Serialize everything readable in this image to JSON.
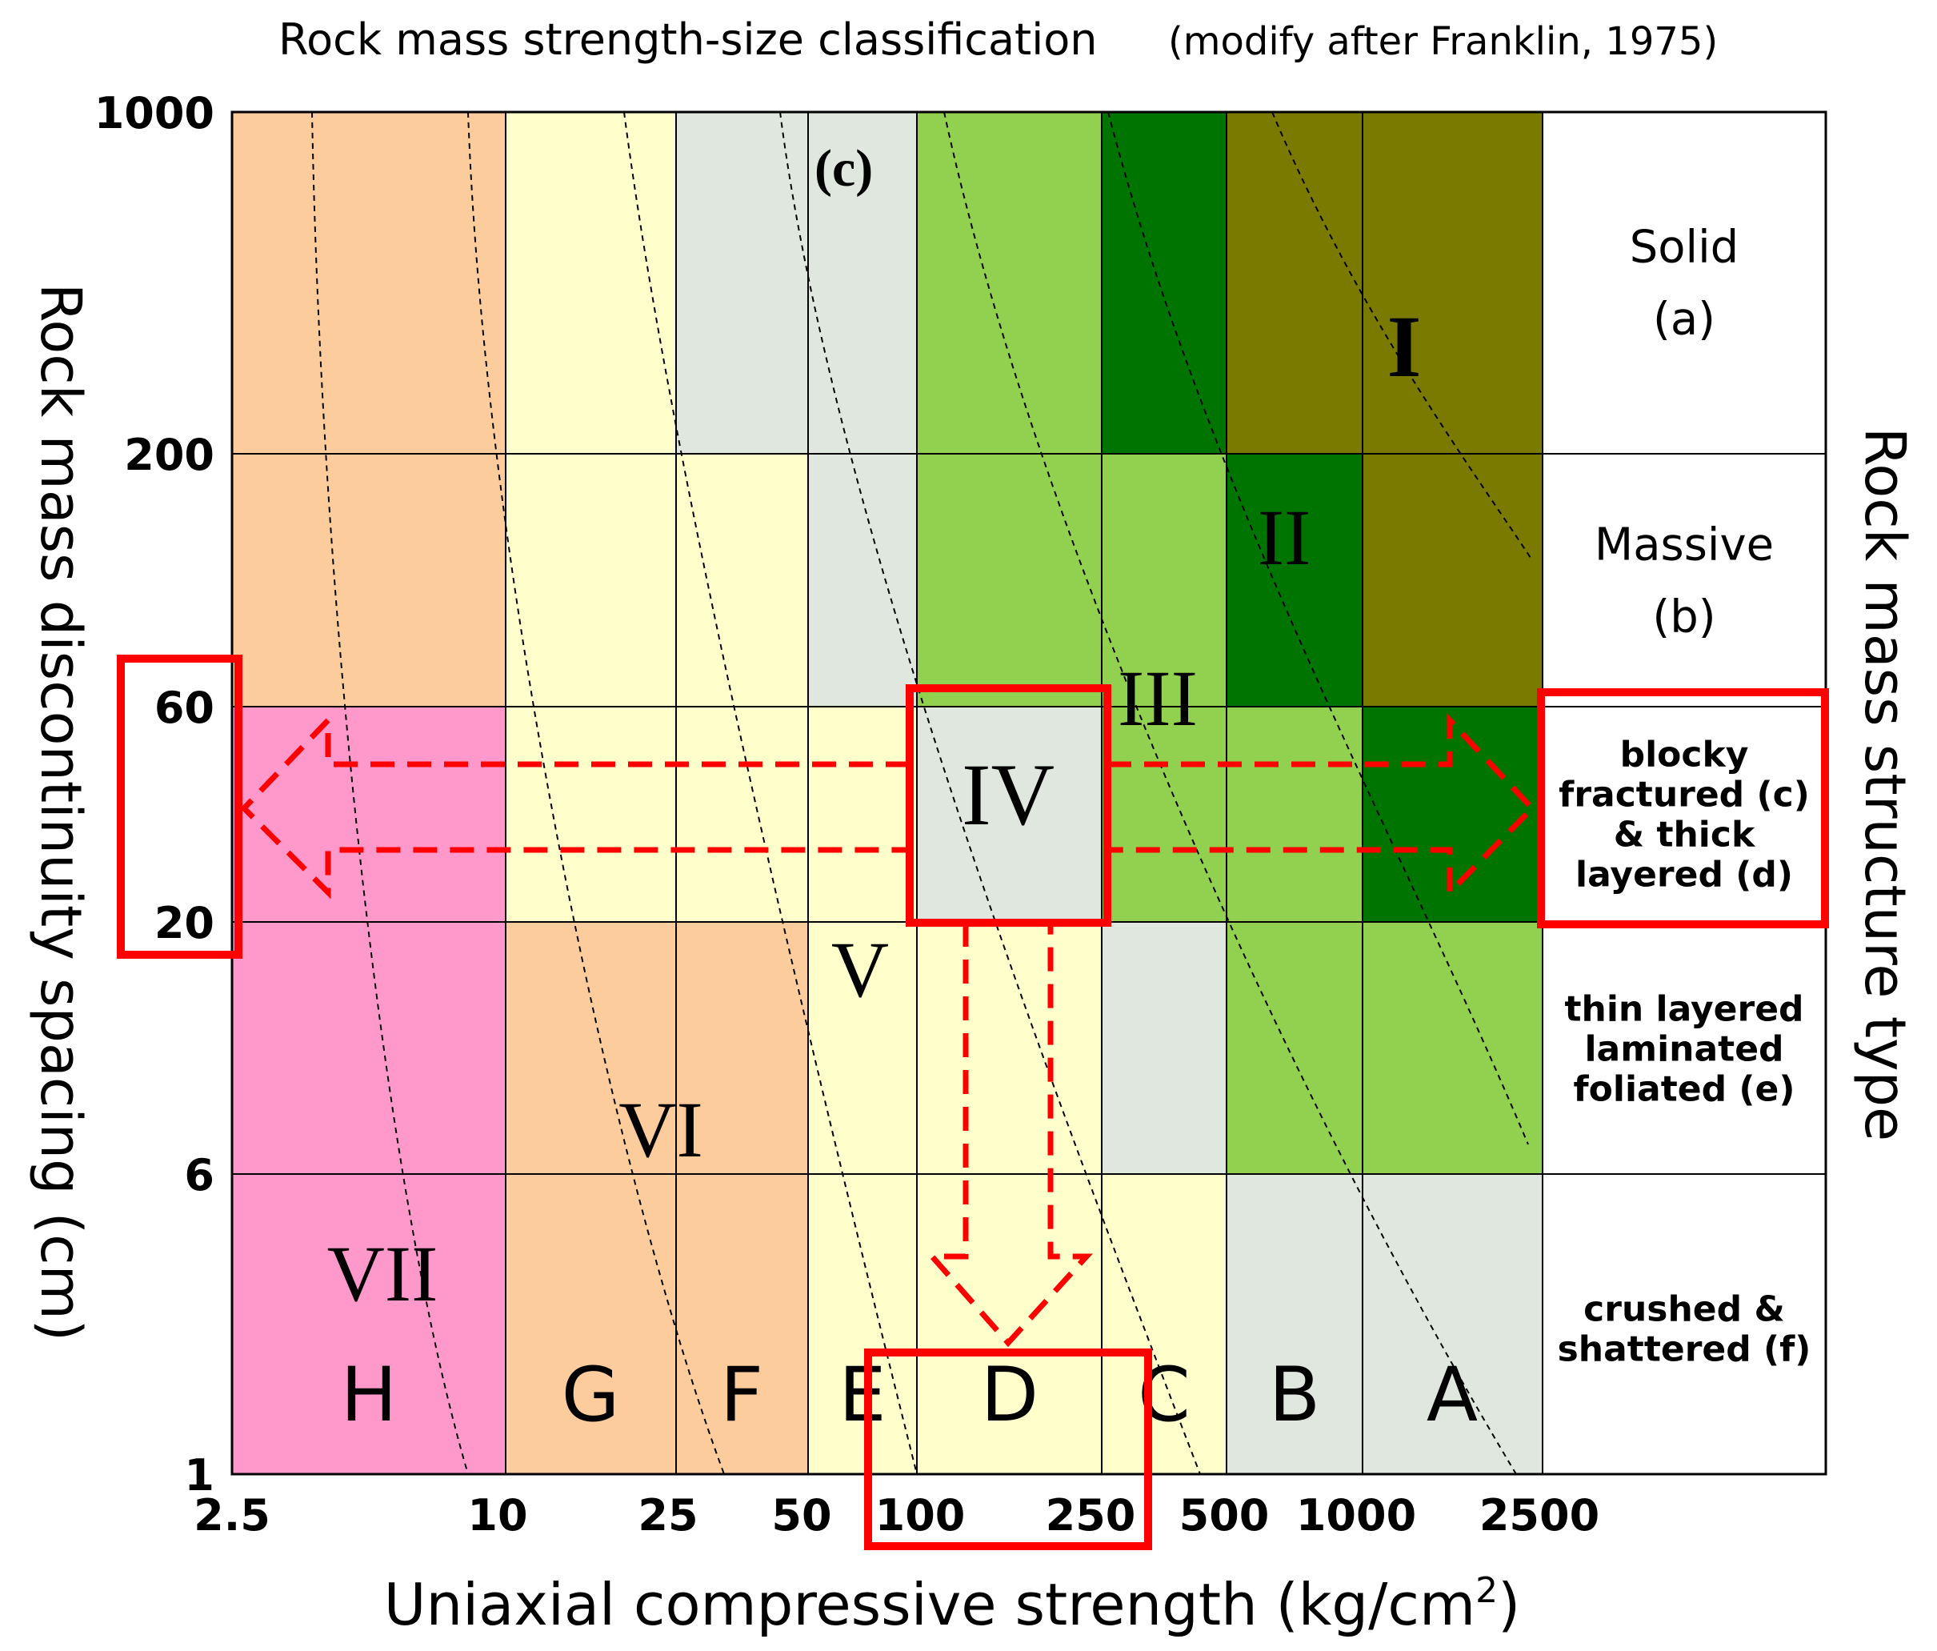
{
  "chart_data": {
    "type": "heatmap",
    "title": "Rock mass strength-size classification",
    "subtitle": "(modify after Franklin, 1975)",
    "panel_label": "(c)",
    "xlabel": "Uniaxial compressive strength (kg/cm",
    "xlabel_sup": "2",
    "xlabel_close": ")",
    "ylabel_left": "Rock mass discontinuity spacing (cm)",
    "ylabel_right": "Rock mass structure type",
    "x_ticks": [
      "2.5",
      "10",
      "25",
      "50",
      "100",
      "250",
      "500",
      "1000",
      "2500"
    ],
    "y_ticks": [
      "1",
      "6",
      "20",
      "60",
      "200",
      "1000"
    ],
    "strength_classes": [
      "H",
      "G",
      "F",
      "E",
      "D",
      "C",
      "B",
      "A"
    ],
    "structure_types": [
      {
        "lines": [
          "Solid",
          "(a)"
        ],
        "bold": false
      },
      {
        "lines": [
          "Massive",
          "(b)"
        ],
        "bold": false
      },
      {
        "lines": [
          "blocky",
          "fractured (c)",
          "& thick",
          "layered (d)"
        ],
        "bold": true
      },
      {
        "lines": [
          "thin layered",
          "laminated",
          "foliated (e)"
        ],
        "bold": true
      },
      {
        "lines": [
          "crushed &",
          "shattered (f)"
        ],
        "bold": true
      }
    ],
    "zones": [
      "I",
      "II",
      "III",
      "IV",
      "V",
      "VI",
      "VII"
    ],
    "zone_colors": {
      "I": "#7a7a00",
      "II": "#007400",
      "III": "#92d050",
      "IV": "#dfe7df",
      "V": "#ffffcc",
      "VI": "#fdcc9c",
      "VII": "#ff99cc"
    },
    "cell_zones": [
      [
        "VI",
        "V",
        "IV",
        "IV",
        "III",
        "II",
        "I",
        "I"
      ],
      [
        "VI",
        "V",
        "V",
        "IV",
        "III",
        "III",
        "II",
        "I"
      ],
      [
        "VII",
        "V",
        "V",
        "V",
        "IV",
        "III",
        "III",
        "II"
      ],
      [
        "VII",
        "VI",
        "VI",
        "V",
        "V",
        "IV",
        "III",
        "III"
      ],
      [
        "VII",
        "VI",
        "VI",
        "V",
        "V",
        "V",
        "IV",
        "IV"
      ]
    ],
    "highlight": {
      "zone": "IV",
      "strength_range": [
        "100",
        "250"
      ],
      "spacing_range_cm": [
        "20",
        "60"
      ],
      "structure": "blocky fractured (c) & thick layered (d)",
      "color": "#ff0000"
    }
  }
}
